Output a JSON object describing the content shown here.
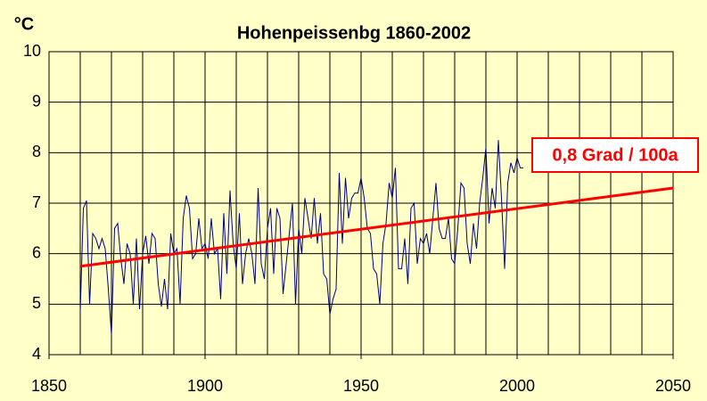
{
  "chart_data": {
    "type": "line",
    "title": "Hohenpeissenbg 1860-2002",
    "y_label": "°C",
    "annotation": "0,8 Grad / 100a",
    "x": [
      1860,
      1861,
      1862,
      1863,
      1864,
      1865,
      1866,
      1867,
      1868,
      1869,
      1870,
      1871,
      1872,
      1873,
      1874,
      1875,
      1876,
      1877,
      1878,
      1879,
      1880,
      1881,
      1882,
      1883,
      1884,
      1885,
      1886,
      1887,
      1888,
      1889,
      1890,
      1891,
      1892,
      1893,
      1894,
      1895,
      1896,
      1897,
      1898,
      1899,
      1900,
      1901,
      1902,
      1903,
      1904,
      1905,
      1906,
      1907,
      1908,
      1909,
      1910,
      1911,
      1912,
      1913,
      1914,
      1915,
      1916,
      1917,
      1918,
      1919,
      1920,
      1921,
      1922,
      1923,
      1924,
      1925,
      1926,
      1927,
      1928,
      1929,
      1930,
      1931,
      1932,
      1933,
      1934,
      1935,
      1936,
      1937,
      1938,
      1939,
      1940,
      1941,
      1942,
      1943,
      1944,
      1945,
      1946,
      1947,
      1948,
      1949,
      1950,
      1951,
      1952,
      1953,
      1954,
      1955,
      1956,
      1957,
      1958,
      1959,
      1960,
      1961,
      1962,
      1963,
      1964,
      1965,
      1966,
      1967,
      1968,
      1969,
      1970,
      1971,
      1972,
      1973,
      1974,
      1975,
      1976,
      1977,
      1978,
      1979,
      1980,
      1981,
      1982,
      1983,
      1984,
      1985,
      1986,
      1987,
      1988,
      1989,
      1990,
      1991,
      1992,
      1993,
      1994,
      1995,
      1996,
      1997,
      1998,
      1999,
      2000,
      2001,
      2002
    ],
    "series": [
      {
        "color": "#000080",
        "values": [
          4.85,
          6.9,
          7.05,
          5.0,
          6.4,
          6.3,
          6.1,
          6.3,
          6.1,
          5.3,
          4.4,
          6.5,
          6.6,
          5.9,
          5.4,
          6.2,
          6.0,
          5.0,
          6.3,
          4.9,
          6.0,
          6.35,
          5.8,
          6.4,
          6.3,
          5.4,
          4.95,
          5.5,
          4.9,
          6.4,
          6.0,
          6.1,
          5.0,
          6.7,
          7.15,
          6.9,
          5.9,
          6.0,
          6.7,
          6.1,
          6.2,
          5.9,
          6.7,
          6.0,
          6.1,
          5.1,
          6.8,
          5.6,
          7.25,
          6.2,
          5.7,
          6.8,
          5.4,
          6.0,
          6.3,
          6.0,
          5.4,
          7.3,
          5.8,
          5.5,
          6.5,
          6.9,
          5.6,
          6.9,
          6.7,
          5.2,
          5.8,
          6.4,
          7.0,
          5.0,
          6.5,
          6.0,
          7.1,
          6.7,
          6.3,
          7.1,
          6.2,
          6.8,
          5.6,
          5.5,
          4.8,
          5.1,
          5.3,
          7.6,
          6.2,
          7.5,
          6.7,
          7.1,
          7.2,
          7.2,
          7.5,
          7.1,
          6.5,
          6.4,
          5.7,
          5.6,
          5.0,
          6.2,
          6.6,
          7.4,
          7.1,
          7.7,
          5.7,
          5.7,
          6.3,
          5.4,
          6.9,
          7.0,
          5.8,
          6.3,
          6.2,
          6.4,
          6.0,
          6.7,
          7.4,
          6.5,
          6.3,
          6.3,
          6.7,
          5.9,
          5.8,
          6.5,
          7.4,
          7.3,
          6.2,
          5.8,
          6.6,
          6.1,
          7.0,
          7.5,
          8.1,
          6.6,
          7.3,
          6.9,
          8.25,
          7.1,
          5.7,
          7.4,
          7.8,
          7.6,
          7.9,
          7.7,
          7.7
        ]
      }
    ],
    "trend": {
      "color": "#ff0000",
      "x": [
        1860,
        2050
      ],
      "values": [
        5.75,
        7.3
      ]
    },
    "xlim": [
      1850,
      2050
    ],
    "xticks": [
      1850,
      1900,
      1950,
      2000,
      2050
    ],
    "x_grid_lines": [
      1850,
      1860,
      1870,
      1880,
      1890,
      1900,
      1910,
      1920,
      1930,
      1940,
      1950,
      1960,
      1970,
      1980,
      1990,
      2000,
      2010,
      2020,
      2030,
      2040,
      2050
    ],
    "ylim": [
      4,
      10
    ],
    "yticks": [
      4,
      5,
      6,
      7,
      8,
      9,
      10
    ],
    "grid": true
  }
}
